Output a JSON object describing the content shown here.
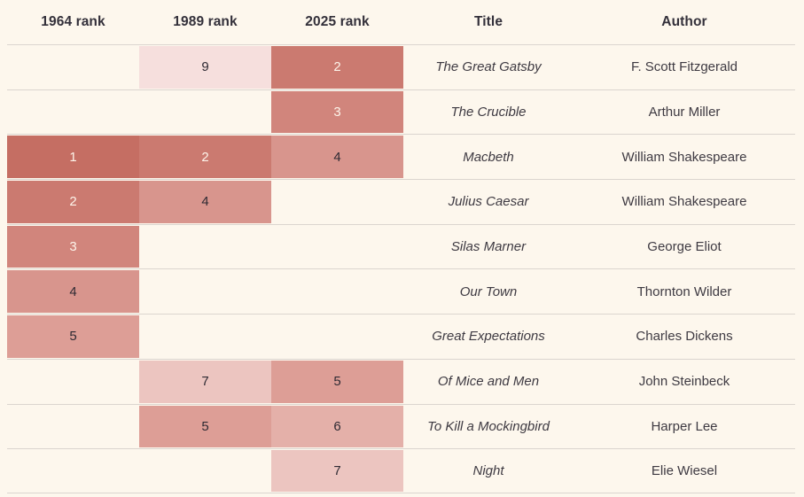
{
  "chart_data": {
    "type": "table",
    "title": "Book rankings by year with heatmap-shaded rank cells",
    "columns": [
      {
        "key": "rank1964",
        "label": "1964 rank",
        "kind": "rank"
      },
      {
        "key": "rank1989",
        "label": "1989 rank",
        "kind": "rank"
      },
      {
        "key": "rank2025",
        "label": "2025 rank",
        "kind": "rank"
      },
      {
        "key": "title",
        "label": "Title",
        "kind": "title"
      },
      {
        "key": "author",
        "label": "Author",
        "kind": "author"
      }
    ],
    "rows": [
      {
        "rank1964": null,
        "rank1989": 9,
        "rank2025": 2,
        "title": "The Great Gatsby",
        "author": "F. Scott Fitzgerald"
      },
      {
        "rank1964": null,
        "rank1989": null,
        "rank2025": 3,
        "title": "The Crucible",
        "author": "Arthur Miller"
      },
      {
        "rank1964": 1,
        "rank1989": 2,
        "rank2025": 4,
        "title": "Macbeth",
        "author": "William Shakespeare"
      },
      {
        "rank1964": 2,
        "rank1989": 4,
        "rank2025": null,
        "title": "Julius Caesar",
        "author": "William Shakespeare"
      },
      {
        "rank1964": 3,
        "rank1989": null,
        "rank2025": null,
        "title": "Silas Marner",
        "author": "George Eliot"
      },
      {
        "rank1964": 4,
        "rank1989": null,
        "rank2025": null,
        "title": "Our Town",
        "author": "Thornton Wilder"
      },
      {
        "rank1964": 5,
        "rank1989": null,
        "rank2025": null,
        "title": "Great Expectations",
        "author": "Charles Dickens"
      },
      {
        "rank1964": null,
        "rank1989": 7,
        "rank2025": 5,
        "title": "Of Mice and Men",
        "author": "John Steinbeck"
      },
      {
        "rank1964": null,
        "rank1989": 5,
        "rank2025": 6,
        "title": "To Kill a Mockingbird",
        "author": "Harper Lee"
      },
      {
        "rank1964": null,
        "rank1989": null,
        "rank2025": 7,
        "title": "Night",
        "author": "Elie Wiesel"
      }
    ],
    "layout": {
      "grid": "off",
      "row_dividers": "horizontal only",
      "rank_cell_alignment": "center"
    },
    "colors": {
      "background": "#fdf7ed",
      "divider": "#dbd5cf",
      "header_text": "#33303a",
      "body_text": "#3e3a42",
      "rank_text_light": "#fdf4ea",
      "rank_text_dark": "#2e2a33",
      "light_text_max_rank": 3,
      "rank_scale": {
        "1": "#c56e63",
        "2": "#cb7a70",
        "3": "#d1857c",
        "4": "#d8958d",
        "5": "#dd9e96",
        "6": "#e4b0a9",
        "7": "#ecc5c0",
        "9": "#f6dfdd"
      }
    }
  }
}
